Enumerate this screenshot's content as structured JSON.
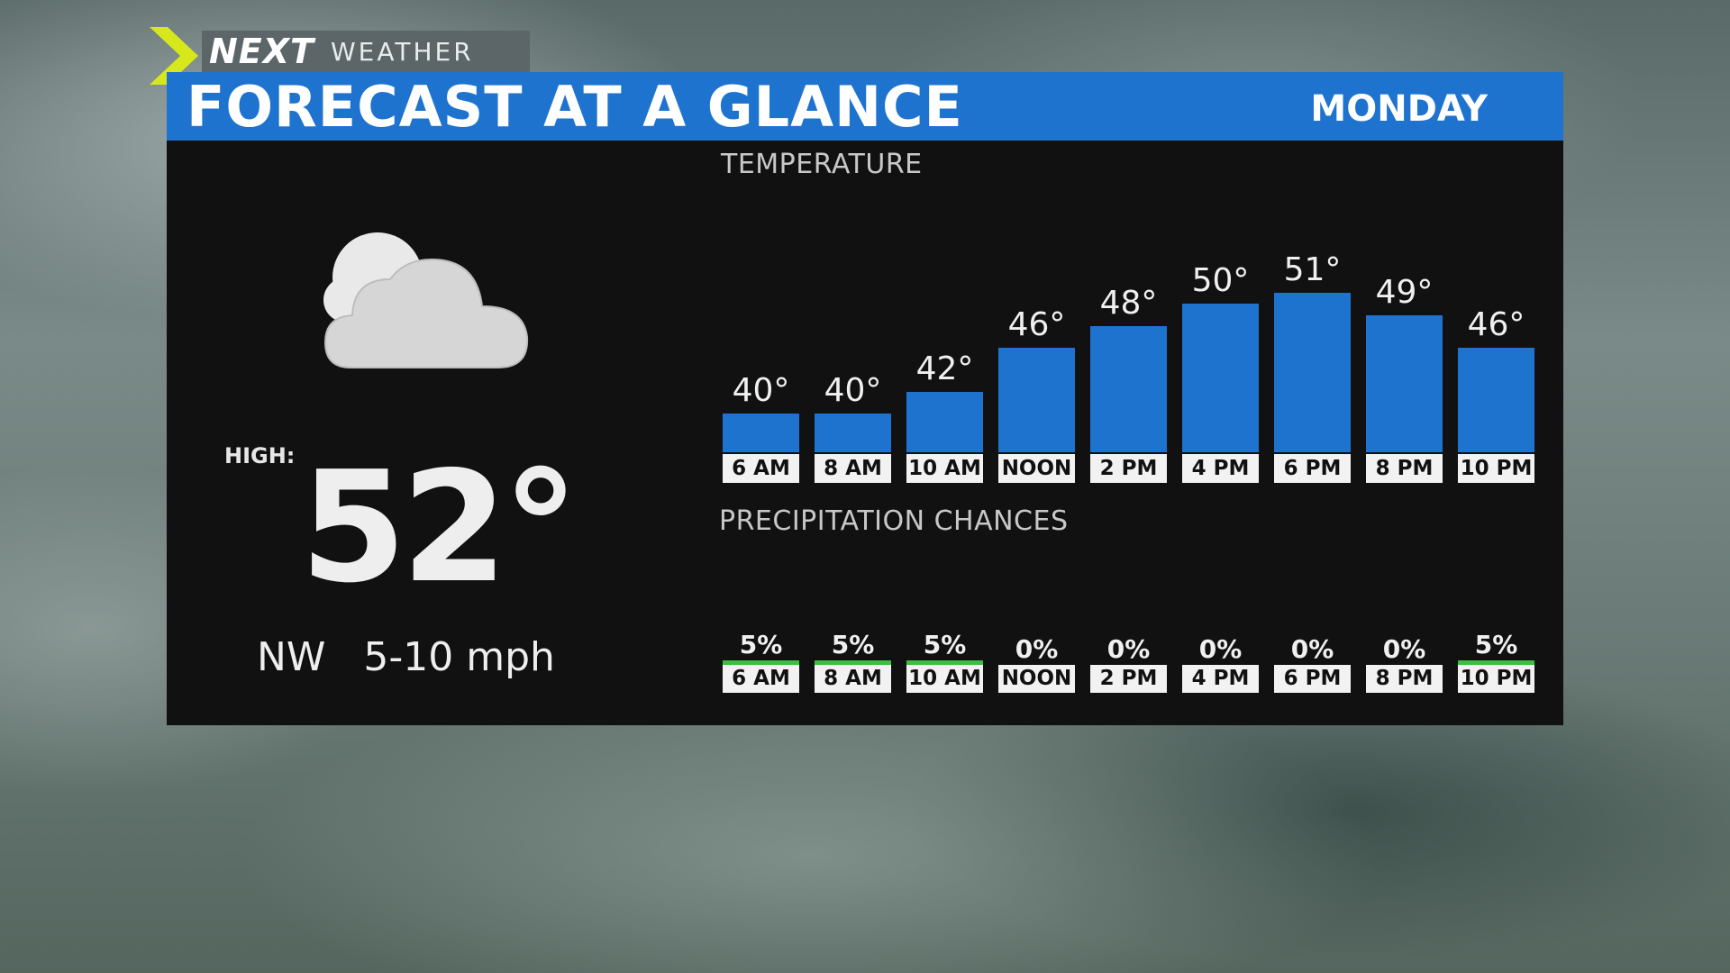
{
  "brand": {
    "primary": "NEXT",
    "secondary": "WEATHER"
  },
  "header": {
    "title": "FORECAST AT A GLANCE",
    "day": "MONDAY"
  },
  "summary": {
    "icon": "cloudy-icon",
    "high_label": "HIGH:",
    "high_value": "52°",
    "wind_direction": "NW",
    "wind_speed": "5-10 mph"
  },
  "colors": {
    "accent_blue": "#1e73cf",
    "precip_green": "#3bbf3e",
    "panel": "#111111"
  },
  "chart_data": [
    {
      "type": "bar",
      "title": "TEMPERATURE",
      "categories": [
        "6 AM",
        "8 AM",
        "10 AM",
        "NOON",
        "2 PM",
        "4 PM",
        "6 PM",
        "8 PM",
        "10 PM"
      ],
      "values": [
        40,
        40,
        42,
        46,
        48,
        50,
        51,
        49,
        46
      ],
      "labels": [
        "40°",
        "40°",
        "42°",
        "46°",
        "48°",
        "50°",
        "51°",
        "49°",
        "46°"
      ],
      "unit": "°"
    },
    {
      "type": "bar",
      "title": "PRECIPITATION CHANCES",
      "categories": [
        "6 AM",
        "8 AM",
        "10 AM",
        "NOON",
        "2 PM",
        "4 PM",
        "6 PM",
        "8 PM",
        "10 PM"
      ],
      "values": [
        5,
        5,
        5,
        0,
        0,
        0,
        0,
        0,
        5
      ],
      "labels": [
        "5%",
        "5%",
        "5%",
        "0%",
        "0%",
        "0%",
        "0%",
        "0%",
        "5%"
      ],
      "unit": "%"
    }
  ]
}
